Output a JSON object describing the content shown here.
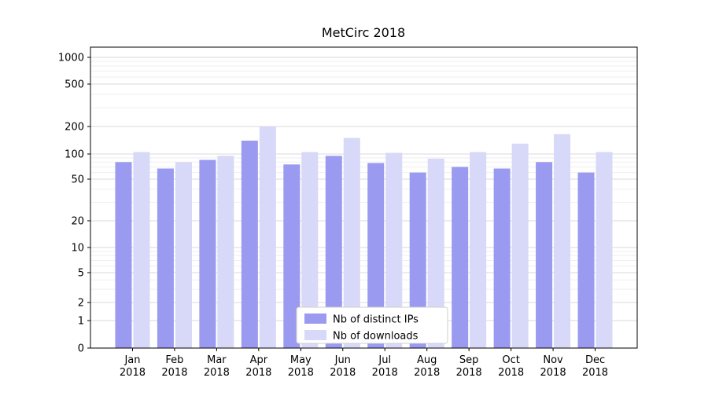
{
  "chart_data": {
    "type": "bar",
    "title": "MetCirc 2018",
    "categories": [
      "Jan 2018",
      "Feb 2018",
      "Mar 2018",
      "Apr 2018",
      "May 2018",
      "Jun 2018",
      "Jul 2018",
      "Aug 2018",
      "Sep 2018",
      "Oct 2018",
      "Nov 2018",
      "Dec 2018"
    ],
    "series": [
      {
        "name": "Nb of distinct IPs",
        "color": "#9a9af0",
        "values": [
          80,
          67,
          85,
          140,
          75,
          95,
          78,
          60,
          70,
          67,
          80,
          60
        ]
      },
      {
        "name": "Nb of downloads",
        "color": "#d8d8f8",
        "values": [
          105,
          80,
          95,
          200,
          105,
          150,
          103,
          88,
          105,
          130,
          165,
          105
        ]
      }
    ],
    "yscale": "symlog",
    "yticks": [
      0,
      1,
      2,
      5,
      10,
      20,
      50,
      100,
      200,
      500,
      1000
    ],
    "ylim": [
      0,
      1300
    ],
    "xlabel": "",
    "ylabel": "",
    "grid": "horizontal",
    "legend_position": "lower center",
    "colors": {
      "major_grid": "#dadada",
      "minor_grid": "#efefef",
      "spine": "#000000",
      "legend_border": "#cfcfcf",
      "background": "#ffffff"
    }
  }
}
